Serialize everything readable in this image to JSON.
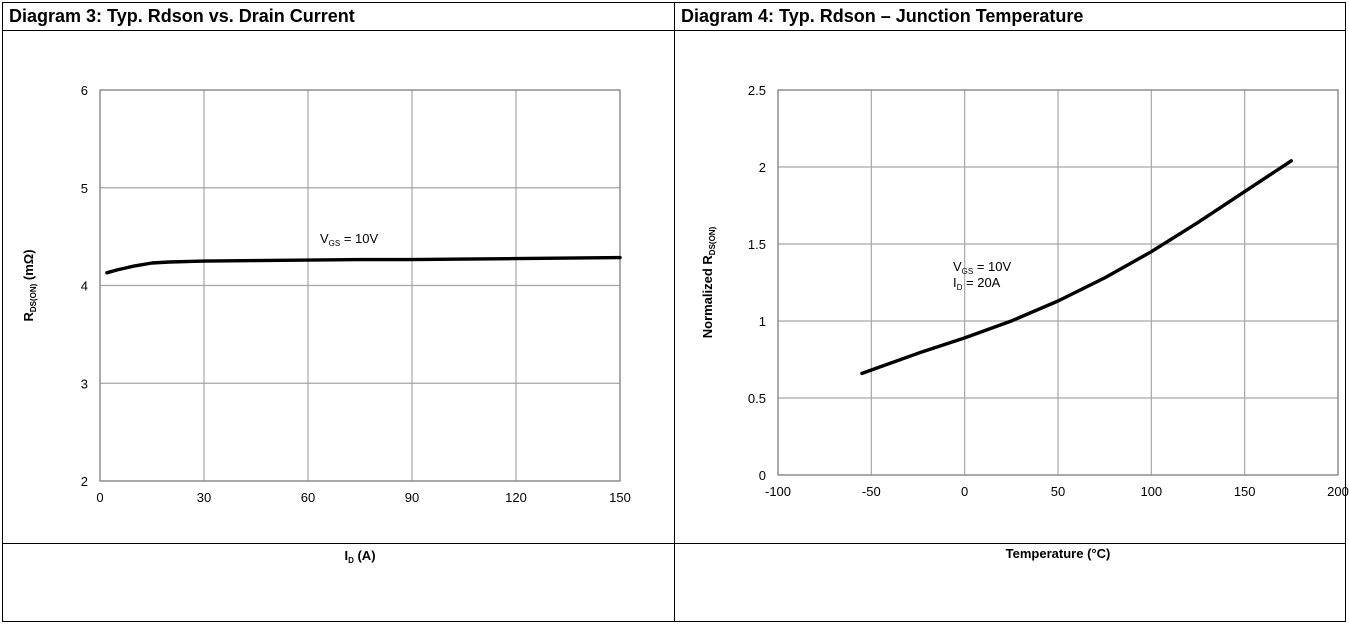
{
  "chart_data": [
    {
      "type": "line",
      "title": "Diagram 3: Typ. Rdson vs. Drain Current",
      "xlabel": "I",
      "xlabel_sub": "D",
      "xlabel_unit": " (A)",
      "ylabel": "R",
      "ylabel_sub": "DS(ON)",
      "ylabel_unit": " (mΩ)",
      "xlim": [
        0,
        150
      ],
      "ylim": [
        2,
        6
      ],
      "xticks": [
        0,
        30,
        60,
        90,
        120,
        150
      ],
      "yticks": [
        2,
        3,
        4,
        5,
        6
      ],
      "grid": true,
      "annotations": [
        {
          "text": "V",
          "sub": "GS",
          "rest": " = 10V",
          "x": 62,
          "y": 4.37
        }
      ],
      "series": [
        {
          "x": [
            2,
            5,
            10,
            15,
            20,
            30,
            45,
            60,
            75,
            90,
            105,
            120,
            135,
            150
          ],
          "y": [
            4.13,
            4.16,
            4.2,
            4.23,
            4.24,
            4.25,
            4.255,
            4.26,
            4.265,
            4.265,
            4.27,
            4.275,
            4.28,
            4.285
          ]
        }
      ]
    },
    {
      "type": "line",
      "title": "Diagram 4: Typ. Rdson – Junction Temperature",
      "xlabel": "Temperature (°C)",
      "ylabel": "Normalized R",
      "ylabel_sub": "DS(ON)",
      "xlim": [
        -100,
        200
      ],
      "ylim": [
        0,
        2.5
      ],
      "xticks": [
        -100,
        -50,
        0,
        50,
        100,
        150,
        200
      ],
      "yticks": [
        0,
        0.5,
        1,
        1.5,
        2,
        2.5
      ],
      "grid": true,
      "annotations": [
        {
          "text": "V",
          "sub": "GS",
          "rest": " = 10V",
          "x": 0,
          "y": 1.62
        },
        {
          "text": "I",
          "sub": "D",
          "rest": " = 20A",
          "x": 0,
          "y": 1.5
        }
      ],
      "series": [
        {
          "x": [
            -55,
            -25,
            0,
            25,
            50,
            75,
            100,
            125,
            150,
            175
          ],
          "y": [
            0.66,
            0.79,
            0.89,
            1.0,
            1.13,
            1.28,
            1.45,
            1.64,
            1.84,
            2.04
          ]
        }
      ]
    }
  ]
}
